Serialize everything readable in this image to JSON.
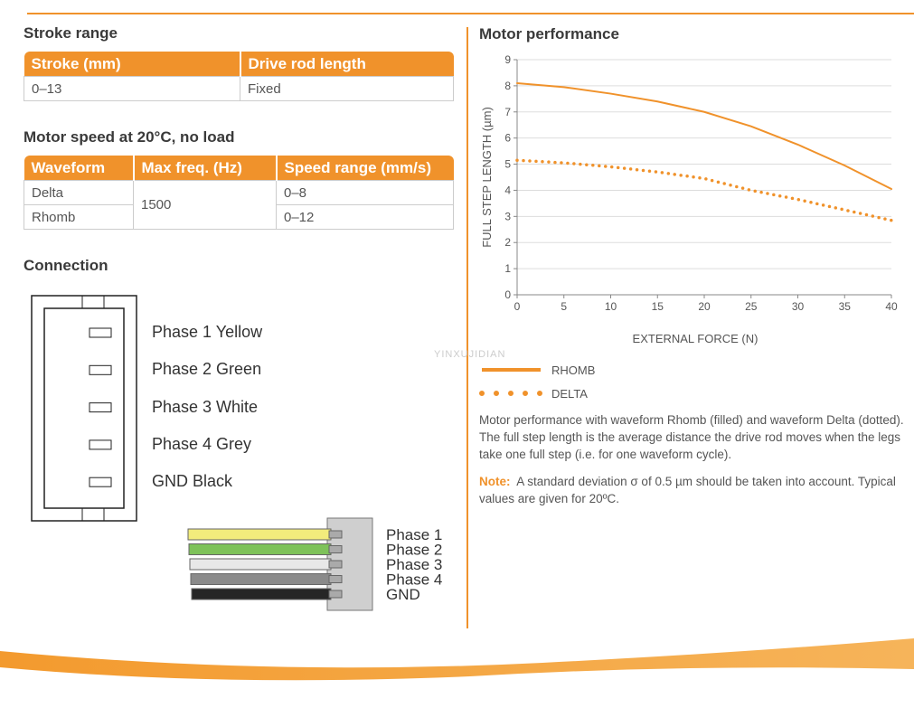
{
  "stroke_range": {
    "title": "Stroke range",
    "header": [
      "Stroke (mm)",
      "Drive rod length"
    ],
    "rows": [
      [
        "0–13",
        "Fixed"
      ]
    ]
  },
  "motor_speed": {
    "title": "Motor speed at 20°C, no load",
    "header": [
      "Waveform",
      "Max freq. (Hz)",
      "Speed range (mm/s)"
    ],
    "waveforms": [
      "Delta",
      "Rhomb"
    ],
    "max_freq": 1500,
    "speed_ranges": [
      "0–8",
      "0–12"
    ]
  },
  "connection": {
    "title": "Connection",
    "pins": [
      "Phase 1 Yellow",
      "Phase 2 Green",
      "Phase 3 White",
      "Phase 4 Grey",
      "GND Black"
    ],
    "wires": [
      "Phase 1",
      "Phase 2",
      "Phase 3",
      "Phase 4",
      "GND"
    ]
  },
  "watermark": "YINXUJIDIAN",
  "chart_data": {
    "type": "line",
    "title": "Motor performance",
    "xlabel": "EXTERNAL FORCE (N)",
    "ylabel": "FULL STEP LENGTH (µm)",
    "x": [
      0,
      5,
      10,
      15,
      20,
      25,
      30,
      35,
      40
    ],
    "series": [
      {
        "name": "RHOMB",
        "color": "#f0922b",
        "style": "solid",
        "values": [
          8.1,
          7.95,
          7.7,
          7.4,
          7.0,
          6.45,
          5.75,
          4.95,
          4.05
        ]
      },
      {
        "name": "DELTA",
        "color": "#f0922b",
        "style": "dotted",
        "values": [
          5.15,
          5.05,
          4.9,
          4.7,
          4.45,
          4.0,
          3.65,
          3.25,
          2.85
        ]
      }
    ],
    "xlim": [
      0,
      40
    ],
    "ylim": [
      0,
      9
    ],
    "xticks": [
      0,
      5,
      10,
      15,
      20,
      25,
      30,
      35,
      40
    ],
    "yticks": [
      0,
      1,
      2,
      3,
      4,
      5,
      6,
      7,
      8,
      9
    ],
    "grid": true
  },
  "caption": "Motor performance with waveform Rhomb (filled) and waveform Delta (dotted). The full step length is the average distance the drive rod moves when the legs take one full step (i.e. for one waveform cycle).",
  "note": {
    "label": "Note:",
    "text": "A standard deviation σ of 0.5 µm should be taken into account. Typical values are given for 20ºC."
  }
}
